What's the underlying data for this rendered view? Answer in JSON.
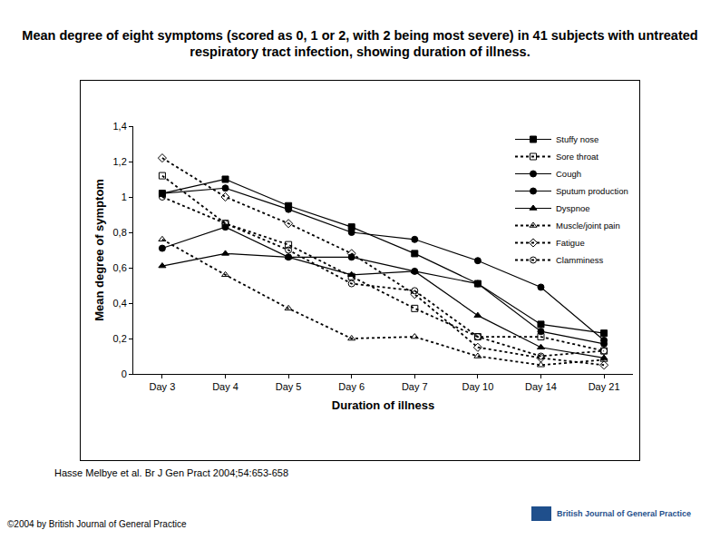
{
  "chart_data": {
    "type": "line",
    "title": "Mean degree of eight symptoms (scored as 0, 1 or 2, with 2 being most severe) in 41 subjects with untreated respiratory tract infection, showing duration of illness.",
    "x_label": "Duration of illness",
    "y_label": "Mean degree of symptom",
    "categories": [
      "Day 3",
      "Day 4",
      "Day 5",
      "Day 6",
      "Day 7",
      "Day 10",
      "Day 14",
      "Day 21"
    ],
    "series": [
      {
        "name": "Stuffy nose",
        "color": "#000000",
        "marker": "square",
        "line_style": "solid",
        "values": [
          1.02,
          1.1,
          0.95,
          0.83,
          0.68,
          0.51,
          0.28,
          0.23
        ]
      },
      {
        "name": "Sore throat",
        "color": "#000000",
        "marker": "square-open",
        "line_style": "dotted",
        "values": [
          1.12,
          0.85,
          0.73,
          0.55,
          0.37,
          0.21,
          0.21,
          0.13
        ]
      },
      {
        "name": "Cough",
        "color": "#000000",
        "marker": "circle",
        "line_style": "solid",
        "values": [
          1.02,
          1.05,
          0.93,
          0.8,
          0.76,
          0.64,
          0.49,
          0.19
        ]
      },
      {
        "name": "Sputum production",
        "color": "#000000",
        "marker": "circle",
        "line_style": "solid",
        "values": [
          0.71,
          0.83,
          0.66,
          0.66,
          0.58,
          0.51,
          0.24,
          0.17
        ]
      },
      {
        "name": "Dyspnoe",
        "color": "#000000",
        "marker": "triangle-up",
        "line_style": "solid",
        "values": [
          0.61,
          0.68,
          0.66,
          0.56,
          0.58,
          0.33,
          0.15,
          0.09
        ]
      },
      {
        "name": "Muscle/joint pain",
        "color": "#000000",
        "marker": "triangle-up-open",
        "line_style": "dotted",
        "values": [
          0.76,
          0.56,
          0.37,
          0.2,
          0.21,
          0.1,
          0.05,
          0.08
        ]
      },
      {
        "name": "Fatigue",
        "color": "#000000",
        "marker": "diamond-open",
        "line_style": "dotted",
        "values": [
          1.22,
          1.0,
          0.85,
          0.68,
          0.45,
          0.15,
          0.09,
          0.05
        ]
      },
      {
        "name": "Clamminess",
        "color": "#000000",
        "marker": "circle-open",
        "line_style": "dotted",
        "values": [
          1.0,
          0.85,
          0.7,
          0.51,
          0.47,
          0.21,
          0.1,
          0.13
        ]
      }
    ],
    "ylim": [
      0,
      1.4
    ],
    "yticks": [
      0,
      {
        "value": 0.2,
        "label": "0,2"
      },
      {
        "value": 0.4,
        "label": "0,4"
      },
      {
        "value": 0.6,
        "label": "0,6"
      },
      {
        "value": 0.8,
        "label": "0,8"
      },
      1,
      {
        "value": 1.2,
        "label": "1,2"
      },
      {
        "value": 1.4,
        "label": "1,4"
      }
    ],
    "grid": false,
    "legend": "top right",
    "annotations": [
      "Hasse Melbye et al. Br J Gen Pract 2004;54:653-658",
      "©2004 by British Journal of General Practice",
      "British Journal of General Practice"
    ]
  }
}
